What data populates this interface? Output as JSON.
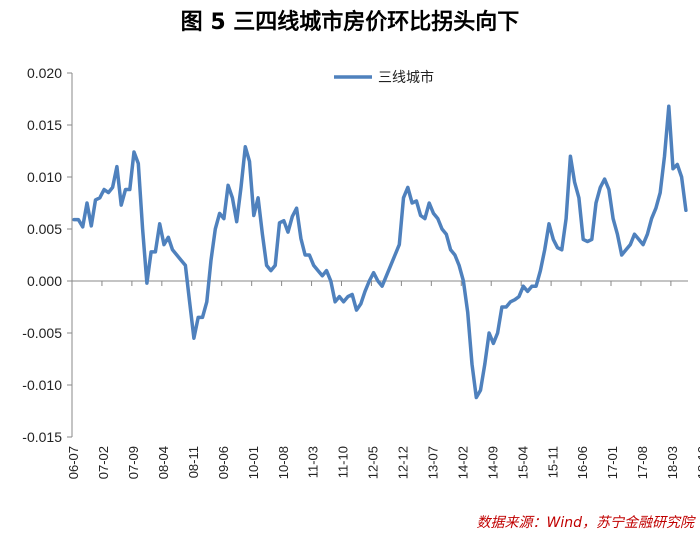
{
  "title": "图 5 三四线城市房价环比拐头向下",
  "source": "数据来源：Wind，苏宁金融研究院",
  "colors": {
    "series": "#4F81BD",
    "source": "#C00000",
    "axis": "#888888"
  },
  "chart_data": {
    "type": "line",
    "title": "图 5 三四线城市房价环比拐头向下",
    "xlabel": "",
    "ylabel": "",
    "ylim": [
      -0.015,
      0.02
    ],
    "yticks": [
      "0.020",
      "0.015",
      "0.010",
      "0.005",
      "0.000",
      "-0.005",
      "-0.010",
      "-0.015"
    ],
    "xticks": [
      "06-07",
      "07-02",
      "07-09",
      "08-04",
      "08-11",
      "09-06",
      "10-01",
      "10-08",
      "11-03",
      "11-10",
      "12-05",
      "12-12",
      "13-07",
      "14-02",
      "14-09",
      "15-04",
      "15-11",
      "16-06",
      "17-01",
      "17-08",
      "18-03",
      "18-10"
    ],
    "legend_position": "top",
    "grid": false,
    "series": [
      {
        "name": "三线城市",
        "start": "2006-07",
        "values": [
          0.0059,
          0.0059,
          0.0052,
          0.0075,
          0.0053,
          0.0078,
          0.008,
          0.0088,
          0.0085,
          0.009,
          0.011,
          0.0073,
          0.0088,
          0.0088,
          0.0124,
          0.0113,
          0.005,
          -0.0002,
          0.0028,
          0.0028,
          0.0055,
          0.0035,
          0.0042,
          0.003,
          0.0025,
          0.002,
          0.0015,
          -0.002,
          -0.0055,
          -0.0035,
          -0.0035,
          -0.002,
          0.002,
          0.005,
          0.0065,
          0.006,
          0.0092,
          0.008,
          0.0057,
          0.009,
          0.0129,
          0.0115,
          0.0063,
          0.008,
          0.0045,
          0.0015,
          0.001,
          0.0015,
          0.0056,
          0.0058,
          0.0047,
          0.0062,
          0.007,
          0.0041,
          0.0025,
          0.0025,
          0.0015,
          0.001,
          0.0005,
          0.001,
          0.0,
          -0.002,
          -0.0015,
          -0.002,
          -0.0015,
          -0.0013,
          -0.0028,
          -0.0022,
          -0.001,
          0.0,
          0.0008,
          0.0,
          -0.0005,
          0.0005,
          0.0015,
          0.0025,
          0.0035,
          0.008,
          0.009,
          0.0075,
          0.0077,
          0.0063,
          0.006,
          0.0075,
          0.0065,
          0.006,
          0.005,
          0.0045,
          0.003,
          0.0025,
          0.0015,
          0.0,
          -0.003,
          -0.008,
          -0.0112,
          -0.0105,
          -0.008,
          -0.005,
          -0.006,
          -0.005,
          -0.0025,
          -0.0025,
          -0.002,
          -0.0018,
          -0.0015,
          -0.0005,
          -0.001,
          -0.0005,
          -0.0005,
          0.001,
          0.003,
          0.0055,
          0.004,
          0.0032,
          0.003,
          0.006,
          0.012,
          0.0095,
          0.008,
          0.004,
          0.0038,
          0.004,
          0.0075,
          0.009,
          0.0098,
          0.0088,
          0.006,
          0.0045,
          0.0025,
          0.003,
          0.0035,
          0.0045,
          0.004,
          0.0035,
          0.0045,
          0.006,
          0.007,
          0.0085,
          0.012,
          0.0168,
          0.0108,
          0.0112,
          0.01,
          0.0068
        ]
      }
    ]
  }
}
